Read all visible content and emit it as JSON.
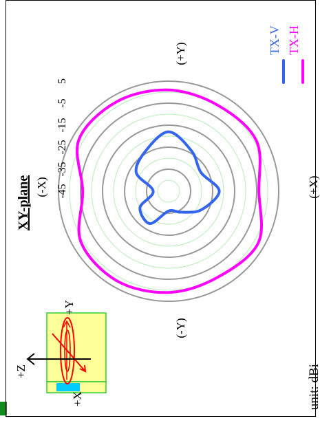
{
  "chart_data": {
    "type": "polar",
    "title": "XY-plane",
    "unit_label": "unit: dBi",
    "radial_ticks": [
      "5",
      "-5",
      "-15",
      "-25",
      "-35",
      "-45"
    ],
    "radial_range_dbi": [
      -45,
      5
    ],
    "direction_labels": {
      "top": "(+Y)",
      "bottom": "(-Y)",
      "left": "(+X)",
      "right": "(-X)"
    },
    "grid": true,
    "legend_position": "right",
    "angles_deg": [
      0,
      30,
      60,
      90,
      120,
      150,
      180,
      210,
      240,
      270,
      300,
      330
    ],
    "series": [
      {
        "name": "TX-H",
        "color": "#ff00ff",
        "values_dbi": [
          -4,
          1,
          0,
          1,
          2,
          2,
          -6,
          1,
          2,
          1,
          0,
          2
        ]
      },
      {
        "name": "TX-V",
        "color": "#3366ee",
        "values_dbi": [
          -22,
          -28,
          -24,
          -18,
          -24,
          -28,
          -38,
          -30,
          -28,
          -36,
          -34,
          -28
        ]
      }
    ]
  },
  "inset": {
    "axis_labels": {
      "z": "+Z",
      "y": "+Y",
      "x": "+X"
    },
    "box_color": "#ffff99",
    "box_border": "#33cc33",
    "marker_color": "#00ccff",
    "arrow_color": "#ff0000"
  }
}
